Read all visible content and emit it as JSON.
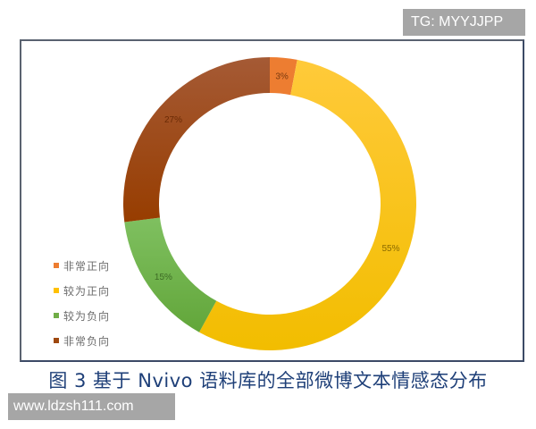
{
  "chart_data": {
    "type": "pie",
    "subtype": "donut",
    "title": "图 3 基于 Nvivo 语料库的全部微博文本情感态分布",
    "categories": [
      "非常正向",
      "较为正向",
      "较为负向",
      "非常负向"
    ],
    "values": [
      3,
      55,
      15,
      27
    ],
    "unit": "%",
    "data_labels": [
      "3%",
      "55%",
      "15%",
      "27%"
    ],
    "colors": [
      "#ed7d31",
      "#ffc000",
      "#70ad47",
      "#9e480e"
    ],
    "legend_position": "left-bottom",
    "start_angle": "top, clockwise"
  },
  "legend": {
    "items": [
      {
        "label": "非常正向",
        "color": "#ed7d31"
      },
      {
        "label": "较为正向",
        "color": "#ffc000"
      },
      {
        "label": "较为负向",
        "color": "#70ad47"
      },
      {
        "label": "非常负向",
        "color": "#9e480e"
      }
    ]
  },
  "caption": "图 3  基于 Nvivo 语料库的全部微博文本情感态分布",
  "watermarks": {
    "top_right": "TG: MYYJJPP",
    "bottom_left": "www.ldzsh111.com"
  }
}
